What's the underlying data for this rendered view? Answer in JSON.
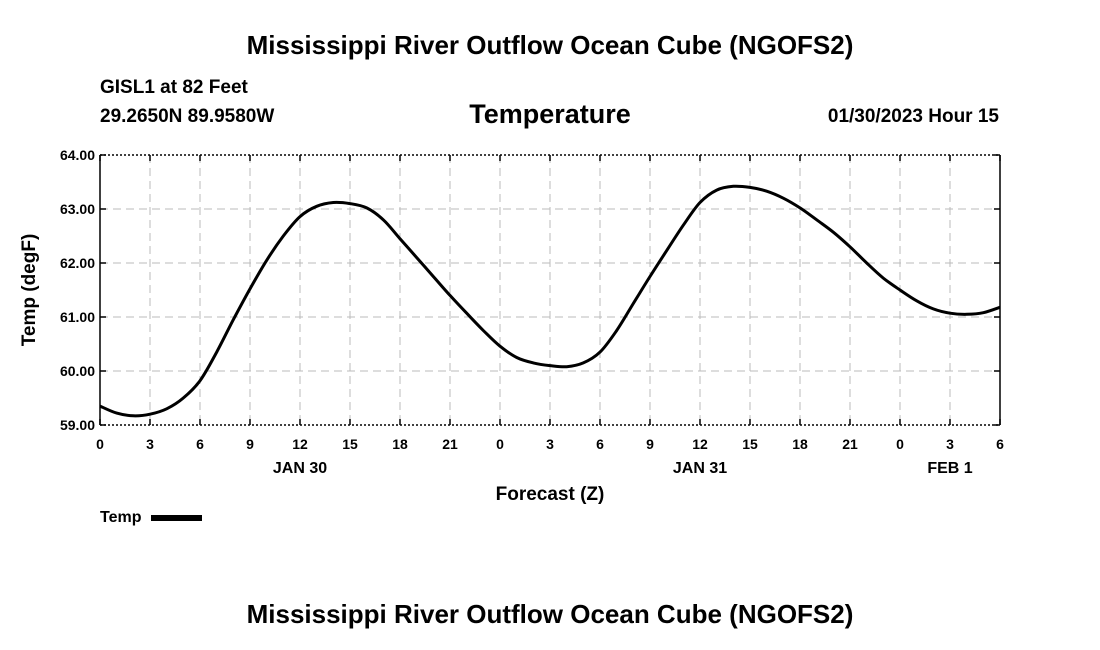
{
  "title": "Mississippi River Outflow Ocean Cube (NGOFS2)",
  "station": {
    "name": "GISL1 at 82 Feet",
    "coords": "29.2650N  89.9580W"
  },
  "subtitle": "Temperature",
  "timestamp": "01/30/2023 Hour 15",
  "colors": {
    "line": "#000000",
    "grid": "#bbbbbb",
    "axis": "#000000"
  },
  "chart_data": {
    "type": "line",
    "title": "Temperature",
    "xlabel": "Forecast (Z)",
    "ylabel": "Temp (degF)",
    "xlim": [
      0,
      54
    ],
    "ylim": [
      59,
      64
    ],
    "y_ticks": [
      59,
      60,
      61,
      62,
      63,
      64
    ],
    "y_tick_labels": [
      "59.00",
      "60.00",
      "61.00",
      "62.00",
      "63.00",
      "64.00"
    ],
    "x_ticks": [
      0,
      3,
      6,
      9,
      12,
      15,
      18,
      21,
      24,
      27,
      30,
      33,
      36,
      39,
      42,
      45,
      48,
      51,
      54
    ],
    "x_tick_labels": [
      "0",
      "3",
      "6",
      "9",
      "12",
      "15",
      "18",
      "21",
      "0",
      "3",
      "6",
      "9",
      "12",
      "15",
      "18",
      "21",
      "0",
      "3",
      "6"
    ],
    "date_labels": [
      {
        "x": 12,
        "label": "JAN 30"
      },
      {
        "x": 36,
        "label": "JAN 31"
      },
      {
        "x": 51,
        "label": "FEB 1"
      }
    ],
    "grid": true,
    "legend": "bottom-left",
    "series": [
      {
        "name": "Temp",
        "x": [
          0,
          1,
          2,
          3,
          4,
          5,
          6,
          7,
          8,
          9,
          10,
          11,
          12,
          13,
          14,
          15,
          16,
          17,
          18,
          19,
          20,
          21,
          22,
          23,
          24,
          25,
          26,
          27,
          28,
          29,
          30,
          31,
          32,
          33,
          34,
          35,
          36,
          37,
          38,
          39,
          40,
          41,
          42,
          43,
          44,
          45,
          46,
          47,
          48,
          49,
          50,
          51,
          52,
          53,
          54
        ],
        "values": [
          59.35,
          59.22,
          59.17,
          59.2,
          59.3,
          59.5,
          59.82,
          60.35,
          60.95,
          61.52,
          62.05,
          62.5,
          62.86,
          63.05,
          63.12,
          63.1,
          63.02,
          62.8,
          62.45,
          62.1,
          61.75,
          61.4,
          61.07,
          60.75,
          60.46,
          60.25,
          60.15,
          60.1,
          60.08,
          60.15,
          60.35,
          60.75,
          61.25,
          61.75,
          62.23,
          62.7,
          63.12,
          63.35,
          63.42,
          63.4,
          63.33,
          63.2,
          63.02,
          62.8,
          62.57,
          62.3,
          62.0,
          61.72,
          61.5,
          61.3,
          61.15,
          61.07,
          61.05,
          61.08,
          61.18
        ]
      }
    ]
  }
}
